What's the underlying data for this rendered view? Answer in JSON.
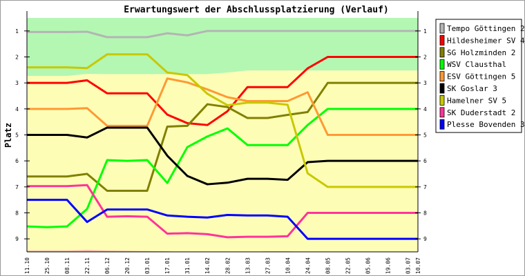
{
  "chart_data": {
    "type": "line",
    "title": "Erwartungswert der Abschlussplatzierung (Verlauf)",
    "xlabel": "",
    "ylabel": "Platz",
    "ylim": [
      0.5,
      9.5
    ],
    "y_inverted": true,
    "yticks": [
      1,
      2,
      3,
      4,
      5,
      6,
      7,
      8,
      9
    ],
    "legend_position": "right",
    "categories": [
      "11.10",
      "25.10",
      "08.11",
      "22.11",
      "06.12",
      "20.12",
      "03.01",
      "17.01",
      "31.01",
      "14.02",
      "28.02",
      "13.03",
      "27.03",
      "10.04",
      "24.04",
      "08.05",
      "22.05",
      "05.06",
      "19.06",
      "03.07",
      "10.07"
    ],
    "week_index": [
      0,
      2,
      4,
      6,
      8,
      10,
      12,
      14,
      16,
      18,
      20,
      22,
      24,
      26,
      28,
      30,
      32,
      34,
      36,
      38,
      39
    ],
    "zones": {
      "promotion_boundary": [
        2.73,
        2.73,
        2.73,
        2.65,
        2.66,
        2.66,
        2.66,
        2.66,
        2.66,
        2.66,
        2.6,
        2.52,
        2.52,
        2.52,
        2.52,
        2.52,
        2.52,
        2.52,
        2.52,
        2.52,
        2.52
      ],
      "promotion_color": "#b3f7b3",
      "middle_color": "#fdfdb6",
      "relegation_boundary": [
        9.45,
        9.45,
        9.45,
        9.43,
        9.45,
        9.46,
        9.47,
        9.48,
        9.5,
        9.5,
        9.5,
        9.5,
        9.48,
        9.48,
        9.5,
        9.5,
        9.5,
        9.5,
        9.5,
        9.5,
        9.5
      ],
      "relegation_color": "#f8b4b4"
    },
    "series": [
      {
        "name": "Tempo Göttingen 2",
        "color": "#b4b4b4",
        "values": [
          1.04,
          1.04,
          1.04,
          1.03,
          1.24,
          1.24,
          1.24,
          1.09,
          1.17,
          1.0,
          1,
          1,
          1,
          1,
          1,
          1,
          1,
          1,
          1,
          1,
          1
        ]
      },
      {
        "name": "Hildesheimer SV 4",
        "color": "#ff0000",
        "values": [
          3,
          3,
          3,
          2.9,
          3.4,
          3.4,
          3.4,
          4.22,
          4.55,
          4.62,
          4.09,
          3.16,
          3.16,
          3.16,
          2.44,
          2,
          2,
          2,
          2,
          2,
          2
        ]
      },
      {
        "name": "SG Holzminden 2",
        "color": "#808000",
        "values": [
          6.6,
          6.6,
          6.6,
          6.5,
          7.15,
          7.15,
          7.15,
          4.68,
          4.65,
          3.82,
          3.93,
          4.35,
          4.35,
          4.23,
          4.12,
          3,
          3,
          3,
          3,
          3,
          3
        ]
      },
      {
        "name": "WSV Clausthal",
        "color": "#00ff00",
        "values": [
          8.52,
          8.55,
          8.52,
          7.85,
          5.97,
          6.0,
          5.97,
          6.85,
          5.47,
          5.06,
          4.75,
          5.39,
          5.39,
          5.39,
          4.62,
          4,
          4,
          4,
          4,
          4,
          4
        ]
      },
      {
        "name": "ESV Göttingen 5",
        "color": "#ff9933",
        "values": [
          4,
          4,
          4,
          3.97,
          4.65,
          4.65,
          4.65,
          2.83,
          2.98,
          3.25,
          3.55,
          3.7,
          3.7,
          3.7,
          3.36,
          5,
          5,
          5,
          5,
          5,
          5
        ]
      },
      {
        "name": "SK Goslar 3",
        "color": "#000000",
        "values": [
          5,
          5,
          5,
          5.1,
          4.72,
          4.72,
          4.72,
          5.8,
          6.58,
          6.9,
          6.84,
          6.69,
          6.69,
          6.73,
          6.05,
          6,
          6,
          6,
          6,
          6,
          6
        ]
      },
      {
        "name": "Hamelner SV 5",
        "color": "#c8c800",
        "values": [
          2.4,
          2.4,
          2.4,
          2.43,
          1.9,
          1.9,
          1.9,
          2.6,
          2.7,
          3.42,
          3.86,
          3.76,
          3.76,
          3.84,
          6.48,
          7,
          7,
          7,
          7,
          7,
          7
        ]
      },
      {
        "name": "SK Duderstadt 2",
        "color": "#ff3399",
        "values": [
          6.97,
          6.97,
          6.97,
          6.93,
          8.15,
          8.13,
          8.15,
          8.8,
          8.78,
          8.82,
          8.94,
          8.92,
          8.92,
          8.9,
          8,
          8,
          8,
          8,
          8,
          8,
          8
        ]
      },
      {
        "name": "Plesse Bovenden 3",
        "color": "#0000ff",
        "values": [
          7.5,
          7.5,
          7.5,
          8.35,
          7.87,
          7.87,
          7.87,
          8.1,
          8.15,
          8.18,
          8.08,
          8.1,
          8.1,
          8.15,
          9,
          9,
          9,
          9,
          9,
          9,
          9
        ]
      }
    ]
  }
}
